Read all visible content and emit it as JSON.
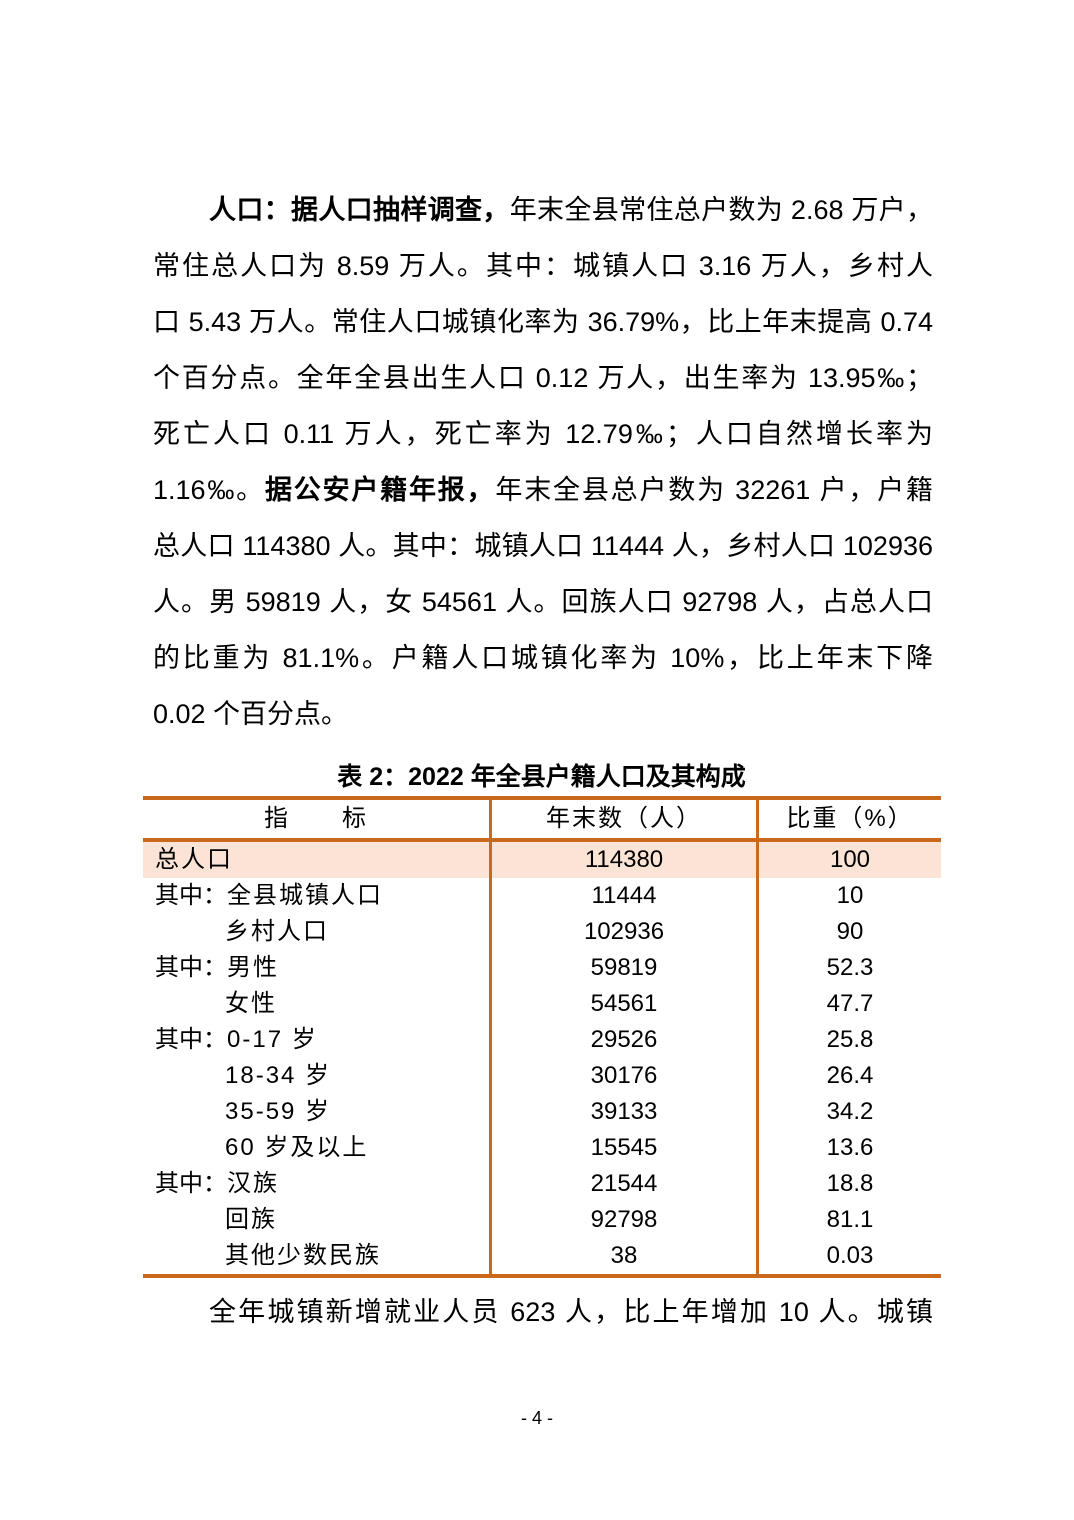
{
  "paragraph1": {
    "lines": [
      [
        {
          "text": "人口：据人口抽样调查，",
          "bold": true
        },
        {
          "text": "年末全县常住总户数为 2.68 万户，",
          "bold": false
        }
      ],
      [
        {
          "text": "常住总人口为 8.59 万人。其中：城镇人口 3.16 万人，乡村人",
          "bold": false
        }
      ],
      [
        {
          "text": "口 5.43 万人。常住人口城镇化率为 36.79%，比上年末提高 0.74",
          "bold": false
        }
      ],
      [
        {
          "text": "个百分点。全年全县出生人口 0.12 万人，出生率为 13.95‰；",
          "bold": false
        }
      ],
      [
        {
          "text": "死亡人口 0.11 万人，死亡率为 12.79‰；人口自然增长率为",
          "bold": false
        }
      ],
      [
        {
          "text": "1.16‰。",
          "bold": false
        },
        {
          "text": "据公安户籍年报，",
          "bold": true
        },
        {
          "text": "年末全县总户数为 32261 户，户籍",
          "bold": false
        }
      ],
      [
        {
          "text": "总人口 114380 人。其中：城镇人口 11444 人，乡村人口 102936",
          "bold": false
        }
      ],
      [
        {
          "text": "人。男 59819 人，女 54561 人。回族人口 92798 人，占总人口",
          "bold": false
        }
      ],
      [
        {
          "text": "的比重为 81.1%。户籍人口城镇化率为 10%，比上年末下降",
          "bold": false
        }
      ],
      [
        {
          "text": "0.02 个百分点。",
          "bold": false
        }
      ]
    ]
  },
  "table": {
    "caption": "表 2：2022 年全县户籍人口及其构成",
    "headers": [
      "指　　标",
      "年末数（人）",
      "比重（%）"
    ],
    "rows": [
      {
        "prefix": "",
        "label": "总人口",
        "value": "114380",
        "share": "100",
        "highlight": true
      },
      {
        "prefix": "其中：",
        "label": "全县城镇人口",
        "value": "11444",
        "share": "10"
      },
      {
        "prefix": "",
        "label": "乡村人口",
        "value": "102936",
        "share": "90"
      },
      {
        "prefix": "其中：",
        "label": "男性",
        "value": "59819",
        "share": "52.3"
      },
      {
        "prefix": "",
        "label": "女性",
        "value": "54561",
        "share": "47.7"
      },
      {
        "prefix": "其中：",
        "label": "0-17 岁",
        "value": "29526",
        "share": "25.8"
      },
      {
        "prefix": "",
        "label": "18-34 岁",
        "value": "30176",
        "share": "26.4"
      },
      {
        "prefix": "",
        "label": "35-59 岁",
        "value": "39133",
        "share": "34.2"
      },
      {
        "prefix": "",
        "label": "60 岁及以上",
        "value": "15545",
        "share": "13.6"
      },
      {
        "prefix": "其中：",
        "label": "汉族",
        "value": "21544",
        "share": "18.8"
      },
      {
        "prefix": "",
        "label": "回族",
        "value": "92798",
        "share": "81.1"
      },
      {
        "prefix": "",
        "label": "其他少数民族",
        "value": "38",
        "share": "0.03"
      }
    ],
    "border_color": "#c8691e",
    "highlight_color": "#fbe4d5"
  },
  "paragraph2": "全年城镇新增就业人员 623 人，比上年增加 10 人。城镇",
  "page_number": "- 4 -"
}
